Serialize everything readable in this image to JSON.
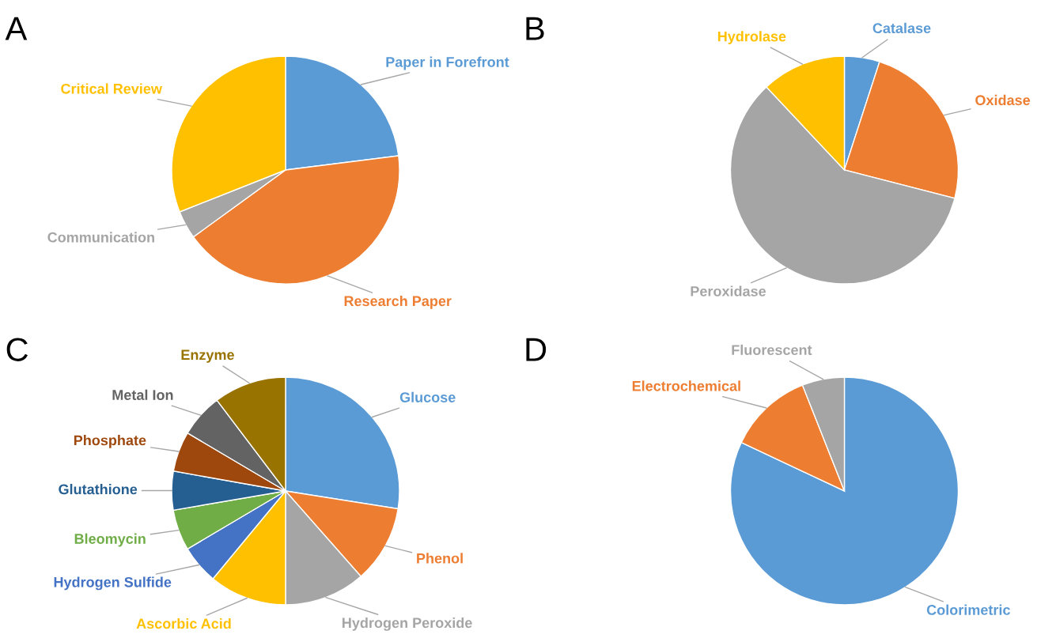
{
  "chart_data": [
    {
      "type": "pie",
      "title": "A",
      "categories": [
        "Paper in Forefront",
        "Research Paper",
        "Communication",
        "Critical Review"
      ],
      "values": [
        23,
        42,
        4,
        31
      ],
      "colors": [
        "#5b9bd5",
        "#ed7d31",
        "#a5a5a5",
        "#ffc000"
      ]
    },
    {
      "type": "pie",
      "title": "B",
      "categories": [
        "Catalase",
        "Oxidase",
        "Peroxidase",
        "Hydrolase"
      ],
      "values": [
        5,
        24,
        59,
        12
      ],
      "colors": [
        "#5b9bd5",
        "#ed7d31",
        "#a5a5a5",
        "#ffc000"
      ]
    },
    {
      "type": "pie",
      "title": "C",
      "categories": [
        "Glucose",
        "Phenol",
        "Hydrogen Peroxide",
        "Ascorbic Acid",
        "Hydrogen Sulfide",
        "Bleomycin",
        "Glutathione",
        "Phosphate",
        "Metal Ion",
        "Enzyme"
      ],
      "values": [
        27.5,
        11,
        11.5,
        11,
        5.5,
        5.8,
        5.5,
        5.7,
        6.2,
        10.3
      ],
      "colors": [
        "#5b9bd5",
        "#ed7d31",
        "#a5a5a5",
        "#ffc000",
        "#4472c4",
        "#70ad47",
        "#255e91",
        "#9e480e",
        "#636363",
        "#997300"
      ]
    },
    {
      "type": "pie",
      "title": "D",
      "categories": [
        "Colorimetric",
        "Electrochemical",
        "Fluorescent"
      ],
      "values": [
        82,
        12,
        6
      ],
      "colors": [
        "#5b9bd5",
        "#ed7d31",
        "#a5a5a5"
      ]
    }
  ]
}
